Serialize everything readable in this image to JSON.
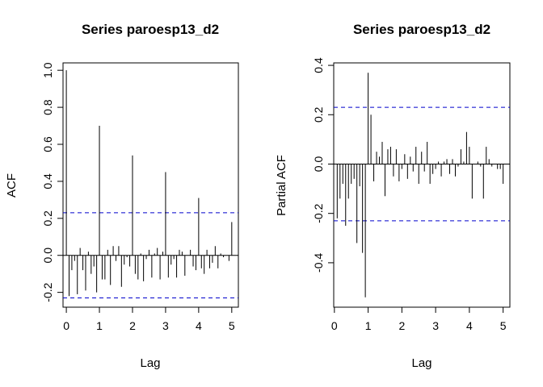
{
  "chart_data": [
    {
      "type": "bar",
      "title": "Series  paroesp13_d2",
      "xlabel": "Lag",
      "ylabel": "ACF",
      "xlim": [
        -0.1,
        5.2
      ],
      "ylim": [
        -0.28,
        1.04
      ],
      "xticks": [
        "0",
        "1",
        "2",
        "3",
        "4",
        "5"
      ],
      "xtick_values": [
        0,
        1,
        2,
        3,
        4,
        5
      ],
      "yticks": [
        "-0.2",
        "0.0",
        "0.2",
        "0.4",
        "0.6",
        "0.8",
        "1.0"
      ],
      "ytick_values": [
        -0.2,
        0.0,
        0.2,
        0.4,
        0.6,
        0.8,
        1.0
      ],
      "confidence_bound": 0.23,
      "confidence_color": "#0000cc",
      "bar_color": "#000000",
      "grid": false,
      "lags": [
        0,
        0.0833,
        0.1667,
        0.25,
        0.3333,
        0.4167,
        0.5,
        0.5833,
        0.6667,
        0.75,
        0.8333,
        0.9167,
        1.0,
        1.0833,
        1.1667,
        1.25,
        1.3333,
        1.4167,
        1.5,
        1.5833,
        1.6667,
        1.75,
        1.8333,
        1.9167,
        2.0,
        2.0833,
        2.1667,
        2.25,
        2.3333,
        2.4167,
        2.5,
        2.5833,
        2.6667,
        2.75,
        2.8333,
        2.9167,
        3.0,
        3.0833,
        3.1667,
        3.25,
        3.3333,
        3.4167,
        3.5,
        3.5833,
        3.6667,
        3.75,
        3.8333,
        3.9167,
        4.0,
        4.0833,
        4.1667,
        4.25,
        4.3333,
        4.4167,
        4.5,
        4.5833,
        4.6667,
        4.75,
        4.8333,
        4.9167,
        5.0
      ],
      "values": [
        1.0,
        -0.22,
        -0.08,
        -0.03,
        -0.21,
        0.04,
        -0.08,
        -0.19,
        0.02,
        -0.1,
        -0.06,
        -0.2,
        0.7,
        -0.13,
        -0.13,
        0.03,
        -0.16,
        0.05,
        -0.03,
        0.05,
        -0.17,
        -0.05,
        -0.01,
        -0.06,
        0.54,
        -0.1,
        -0.13,
        0.01,
        -0.14,
        -0.02,
        0.03,
        -0.12,
        0.01,
        0.04,
        -0.13,
        0.02,
        0.45,
        -0.12,
        -0.05,
        -0.02,
        -0.12,
        0.03,
        0.02,
        -0.11,
        0.0,
        0.03,
        -0.06,
        -0.08,
        0.31,
        -0.07,
        -0.1,
        0.03,
        -0.07,
        -0.04,
        0.05,
        -0.07,
        0.01,
        -0.01,
        0.0,
        -0.03,
        0.18
      ]
    },
    {
      "type": "bar",
      "title": "Series  paroesp13_d2",
      "xlabel": "Lag",
      "ylabel": "Partial ACF",
      "xlim": [
        -0.02,
        5.2
      ],
      "ylim": [
        -0.58,
        0.41
      ],
      "xticks": [
        "0",
        "1",
        "2",
        "3",
        "4",
        "5"
      ],
      "xtick_values": [
        0,
        1,
        2,
        3,
        4,
        5
      ],
      "yticks": [
        "-0.4",
        "-0.2",
        "0.0",
        "0.2",
        "0.4"
      ],
      "ytick_values": [
        -0.4,
        -0.2,
        0.0,
        0.2,
        0.4
      ],
      "confidence_bound": 0.23,
      "confidence_color": "#0000cc",
      "bar_color": "#000000",
      "grid": false,
      "lags": [
        0.0833,
        0.1667,
        0.25,
        0.3333,
        0.4167,
        0.5,
        0.5833,
        0.6667,
        0.75,
        0.8333,
        0.9167,
        1.0,
        1.0833,
        1.1667,
        1.25,
        1.3333,
        1.4167,
        1.5,
        1.5833,
        1.6667,
        1.75,
        1.8333,
        1.9167,
        2.0,
        2.0833,
        2.1667,
        2.25,
        2.3333,
        2.4167,
        2.5,
        2.5833,
        2.6667,
        2.75,
        2.8333,
        2.9167,
        3.0,
        3.0833,
        3.1667,
        3.25,
        3.3333,
        3.4167,
        3.5,
        3.5833,
        3.6667,
        3.75,
        3.8333,
        3.9167,
        4.0,
        4.0833,
        4.1667,
        4.25,
        4.3333,
        4.4167,
        4.5,
        4.5833,
        4.6667,
        4.75,
        4.8333,
        4.9167,
        5.0
      ],
      "values": [
        -0.22,
        -0.14,
        -0.08,
        -0.25,
        -0.14,
        -0.08,
        -0.06,
        -0.32,
        -0.09,
        -0.36,
        -0.54,
        0.37,
        0.2,
        -0.07,
        0.05,
        0.03,
        0.09,
        -0.13,
        0.06,
        0.07,
        -0.05,
        0.06,
        -0.07,
        -0.02,
        0.04,
        -0.06,
        0.03,
        -0.03,
        0.07,
        -0.08,
        0.05,
        -0.03,
        0.09,
        -0.08,
        -0.04,
        -0.02,
        0.01,
        -0.05,
        0.01,
        0.02,
        -0.04,
        0.02,
        -0.05,
        -0.01,
        0.06,
        0.01,
        0.13,
        0.07,
        -0.14,
        0.0,
        0.01,
        -0.01,
        -0.14,
        0.07,
        0.02,
        -0.01,
        0.0,
        -0.02,
        -0.02,
        -0.08
      ]
    }
  ]
}
